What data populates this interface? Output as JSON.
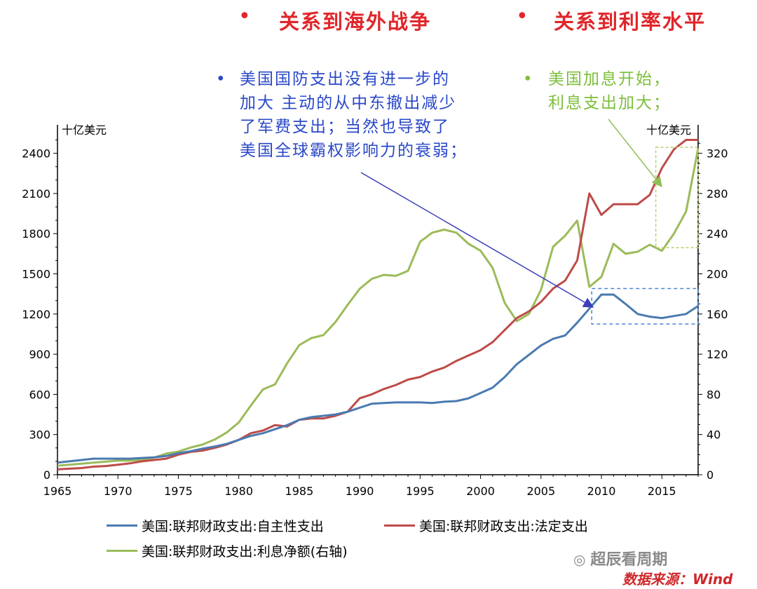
{
  "headings": [
    {
      "bullet": "•",
      "text": "关系到海外战争"
    },
    {
      "bullet": "•",
      "text": "关系到利率水平"
    }
  ],
  "annotations": {
    "blue": {
      "bullet": "•",
      "lines": [
        "美国国防支出没有进一步的",
        "加大 主动的从中东撤出减少",
        "了军费支出；当然也导致了",
        "美国全球霸权影响力的衰弱；"
      ]
    },
    "green": {
      "bullet": "•",
      "lines": [
        "美国加息开始，",
        "利息支出加大；"
      ]
    }
  },
  "watermark": "超辰看周期",
  "source": "数据来源：Wind",
  "colors": {
    "discretionary": "#4a7ab0",
    "mandatory": "#be4b48",
    "interest": "#9bbb59",
    "annotation_blue": "#2a48c8",
    "annotation_green": "#7cbf3a",
    "heading_red": "#e0262a"
  },
  "chart_data": {
    "type": "line",
    "left_axis": {
      "unit": "十亿美元",
      "ylim": [
        0,
        2550
      ],
      "ticks": [
        0,
        300,
        600,
        900,
        1200,
        1500,
        1800,
        2100,
        2400
      ]
    },
    "right_axis": {
      "unit": "十亿美元",
      "ylim": [
        0,
        340
      ],
      "ticks": [
        0,
        40,
        80,
        120,
        160,
        200,
        240,
        280,
        320
      ]
    },
    "x_axis": {
      "range": [
        1965,
        2018
      ],
      "ticks": [
        1965,
        1970,
        1975,
        1980,
        1985,
        1990,
        1995,
        2000,
        2005,
        2010,
        2015
      ]
    },
    "x": [
      1965,
      1966,
      1967,
      1968,
      1969,
      1970,
      1971,
      1972,
      1973,
      1974,
      1975,
      1976,
      1977,
      1978,
      1979,
      1980,
      1981,
      1982,
      1983,
      1984,
      1985,
      1986,
      1987,
      1988,
      1989,
      1990,
      1991,
      1992,
      1993,
      1994,
      1995,
      1996,
      1997,
      1998,
      1999,
      2000,
      2001,
      2002,
      2003,
      2004,
      2005,
      2006,
      2007,
      2008,
      2009,
      2010,
      2011,
      2012,
      2013,
      2014,
      2015,
      2016,
      2017,
      2018
    ],
    "series": [
      {
        "name": "美国:联邦财政支出:自主性支出",
        "axis": "left",
        "values": [
          90,
          100,
          110,
          120,
          120,
          120,
          120,
          125,
          130,
          140,
          160,
          175,
          195,
          210,
          230,
          260,
          290,
          310,
          340,
          370,
          410,
          430,
          440,
          450,
          470,
          500,
          530,
          535,
          540,
          540,
          540,
          535,
          545,
          550,
          570,
          610,
          650,
          730,
          825,
          895,
          965,
          1015,
          1040,
          1135,
          1240,
          1345,
          1345,
          1275,
          1200,
          1180,
          1170,
          1185,
          1200,
          1260
        ]
      },
      {
        "name": "美国:联邦财政支出:法定支出",
        "axis": "left",
        "values": [
          40,
          45,
          50,
          60,
          65,
          75,
          85,
          100,
          110,
          120,
          150,
          170,
          180,
          200,
          225,
          260,
          310,
          330,
          370,
          360,
          410,
          420,
          420,
          440,
          470,
          570,
          600,
          640,
          670,
          710,
          730,
          770,
          800,
          850,
          890,
          930,
          990,
          1080,
          1170,
          1220,
          1290,
          1390,
          1450,
          1600,
          2100,
          1940,
          2020,
          2020,
          2020,
          2090,
          2290,
          2430,
          2500,
          2500
        ]
      },
      {
        "name": "美国:联邦财政支出:利息净额(右轴)",
        "axis": "right",
        "values": [
          9,
          10,
          11,
          12,
          13,
          14,
          14,
          15,
          17,
          21,
          23,
          27,
          30,
          35,
          42,
          52,
          69,
          85,
          90,
          111,
          129,
          136,
          139,
          152,
          169,
          185,
          195,
          199,
          198,
          203,
          232,
          241,
          244,
          241,
          230,
          223,
          206,
          171,
          153,
          160,
          184,
          227,
          238,
          253,
          187,
          197,
          230,
          220,
          222,
          229,
          223,
          240,
          262,
          325
        ]
      }
    ]
  }
}
